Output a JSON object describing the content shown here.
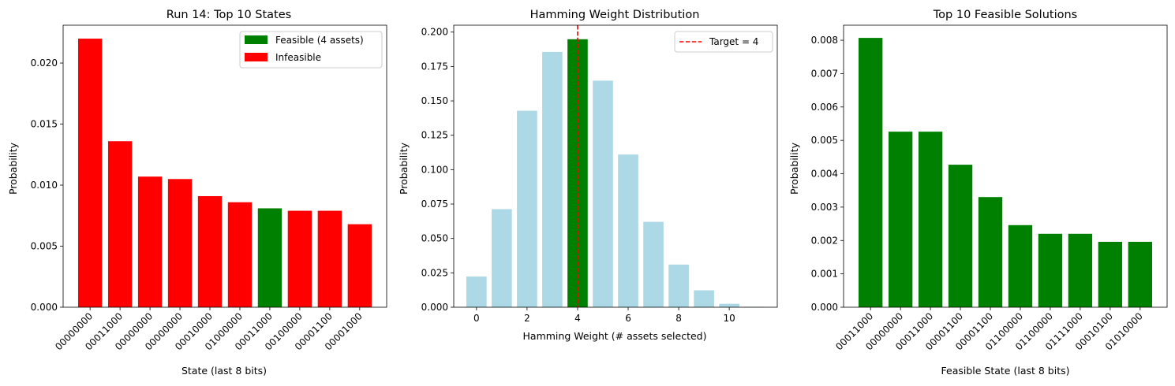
{
  "chart_data": [
    {
      "type": "bar",
      "title": "Run 14: Top 10 States",
      "xlabel": "State (last 8 bits)",
      "ylabel": "Probability",
      "ylim": [
        0,
        0.0231
      ],
      "yticks": [
        "0.000",
        "0.005",
        "0.010",
        "0.015",
        "0.020"
      ],
      "categories": [
        "00000000",
        "00011000",
        "00000000",
        "00000000",
        "00010000",
        "01000000",
        "00011000",
        "00100000",
        "00001100",
        "00001000"
      ],
      "values": [
        0.022,
        0.0136,
        0.0107,
        0.0105,
        0.0091,
        0.0086,
        0.0081,
        0.0079,
        0.0079,
        0.0068
      ],
      "feasible": [
        false,
        false,
        false,
        false,
        false,
        false,
        true,
        false,
        false,
        false
      ],
      "colors": {
        "feasible": "#008000",
        "infeasible": "#ff0000"
      },
      "legend": {
        "position": "top-right",
        "entries": [
          {
            "label": "Feasible (4 assets)",
            "color": "#008000"
          },
          {
            "label": "Infeasible",
            "color": "#ff0000"
          }
        ]
      }
    },
    {
      "type": "bar",
      "title": "Hamming Weight Distribution",
      "xlabel": "Hamming Weight (# assets selected)",
      "ylabel": "Probability",
      "xlim": [
        -0.9,
        11.9
      ],
      "ylim": [
        0,
        0.205
      ],
      "xticks": [
        "0",
        "2",
        "4",
        "6",
        "8",
        "10"
      ],
      "yticks": [
        "0.000",
        "0.025",
        "0.050",
        "0.075",
        "0.100",
        "0.125",
        "0.150",
        "0.175",
        "0.200"
      ],
      "x": [
        0,
        1,
        2,
        3,
        4,
        5,
        6,
        7,
        8,
        9,
        10,
        11
      ],
      "values": [
        0.0223,
        0.0713,
        0.1428,
        0.1856,
        0.1948,
        0.1647,
        0.111,
        0.0621,
        0.031,
        0.0123,
        0.0025,
        0.0003
      ],
      "highlight_x": 4,
      "colors": {
        "bar": "#add8e6",
        "highlight": "#008000",
        "target": "#ff0000"
      },
      "target_line": {
        "x": 4,
        "label": "Target = 4"
      },
      "legend": {
        "position": "top-right",
        "entries": [
          {
            "label": "Target = 4",
            "color": "#ff0000"
          }
        ]
      }
    },
    {
      "type": "bar",
      "title": "Top 10 Feasible Solutions",
      "xlabel": "Feasible State (last 8 bits)",
      "ylabel": "Probability",
      "ylim": [
        0,
        0.00845
      ],
      "yticks": [
        "0.000",
        "0.001",
        "0.002",
        "0.003",
        "0.004",
        "0.005",
        "0.006",
        "0.007",
        "0.008"
      ],
      "categories": [
        "00011000",
        "00000000",
        "00011000",
        "00001100",
        "00001100",
        "01100000",
        "01100000",
        "01111000",
        "00010100",
        "01010000"
      ],
      "values": [
        0.00807,
        0.00526,
        0.00526,
        0.00427,
        0.0033,
        0.00246,
        0.0022,
        0.0022,
        0.00196,
        0.00196
      ],
      "colors": {
        "bar": "#008000"
      }
    }
  ]
}
